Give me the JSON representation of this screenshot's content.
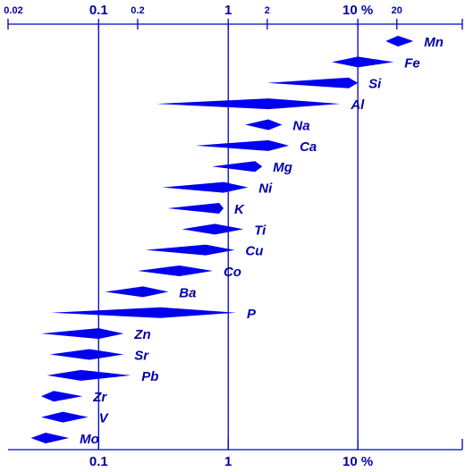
{
  "chart_data": {
    "type": "range-diamond",
    "color": "#0000ee",
    "label_color": "#0000aa",
    "log_x": true,
    "xlim": [
      0.02,
      64
    ],
    "xticks": [
      0.02,
      0.1,
      0.2,
      1,
      2,
      {
        "value": 10,
        "label": "10 %"
      },
      20
    ],
    "x2ticks": [
      0.1,
      1,
      {
        "value": 10,
        "label": "10 %"
      }
    ],
    "grid": [
      0.1,
      1,
      10
    ],
    "categories": [
      "Mn",
      "Fe",
      "Si",
      "Al",
      "Na",
      "Ca",
      "Mg",
      "Ni",
      "K",
      "Ti",
      "Cu",
      "Co",
      "Ba",
      "P",
      "Zn",
      "Sr",
      "Pb",
      "Zr",
      "V",
      "Mo"
    ],
    "min": [
      16.4,
      6.3,
      2.0,
      0.28,
      1.35,
      0.56,
      0.75,
      0.31,
      0.34,
      0.44,
      0.23,
      0.2,
      0.112,
      0.043,
      0.036,
      0.042,
      0.04,
      0.036,
      0.036,
      0.03
    ],
    "mode": [
      20.4,
      10,
      8.5,
      2.04,
      2.04,
      2.04,
      1.61,
      0.92,
      0.85,
      0.79,
      0.67,
      0.42,
      0.22,
      0.3,
      0.1,
      0.085,
      0.073,
      0.045,
      0.053,
      0.039
    ],
    "max": [
      26.8,
      18.9,
      10,
      7.3,
      2.6,
      2.94,
      1.83,
      1.42,
      0.92,
      1.31,
      1.12,
      0.76,
      0.345,
      1.15,
      0.156,
      0.156,
      0.177,
      0.075,
      0.083,
      0.059
    ]
  }
}
